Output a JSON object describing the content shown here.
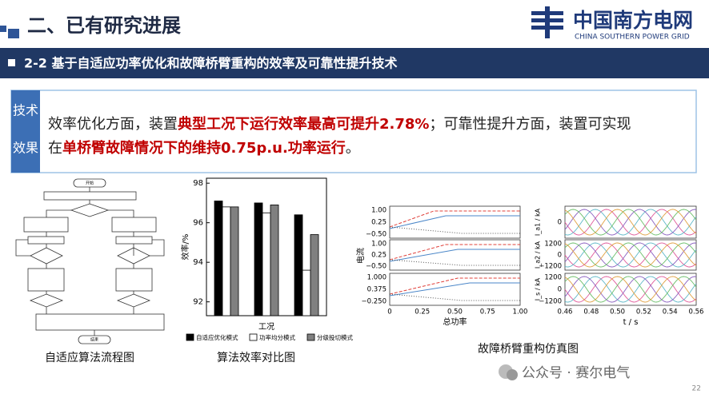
{
  "header": {
    "title": "二、已有研究进展"
  },
  "logo": {
    "name": "中国南方电网",
    "subtitle": "CHINA SOUTHERN POWER GRID"
  },
  "section": {
    "title": "2-2 基于自适应功率优化和故障桥臂重构的效率及可靠性提升技术"
  },
  "summary": {
    "label": [
      "技术",
      "效果"
    ],
    "line1": [
      "效率优化方面，装置",
      "典型工况下运行效率最高可提升2.78%",
      "；可靠性提升方面，装置可实现"
    ],
    "line2": [
      "在",
      "单桥臂故障情况下的维持0.75p.u.功率运行",
      "。"
    ]
  },
  "flowchart": {
    "start": "开始",
    "end": "结束",
    "caption": "自适应算法流程图"
  },
  "bar_figure": {
    "caption": "算法效率对比图"
  },
  "chart_data": {
    "type": "bar",
    "categories": [
      null,
      null,
      null
    ],
    "xlabel": "工况",
    "ylabel": "效率/%",
    "ylim": [
      91.3,
      98.25
    ],
    "yticks": [
      92,
      94,
      96,
      98
    ],
    "grid": false,
    "legend": "bottom",
    "series": [
      {
        "name": "自适应优化模式",
        "color": "#000000",
        "values": [
          97.1,
          97.0,
          96.4
        ]
      },
      {
        "name": "功率均分模式",
        "color": "#ffffff",
        "values": [
          96.8,
          96.5,
          93.6
        ]
      },
      {
        "name": "分级投切模式",
        "color": "#808080",
        "values": [
          96.8,
          96.9,
          95.4
        ]
      }
    ]
  },
  "simulation": {
    "caption": "故障桥臂重构仿真图",
    "left": {
      "ylabel": "电流",
      "xlabel": "总功率",
      "panels": [
        [
          "1.00",
          "0.25",
          "−0.50"
        ],
        [
          "1.00",
          "0.25",
          "−0.50"
        ],
        [
          "1.000",
          "0.375",
          "−0.250"
        ]
      ],
      "xticks": [
        "0",
        "0.25",
        "0.50",
        "0.75",
        "1.00"
      ]
    },
    "right": {
      "xlabel": "t / s",
      "ylabels": [
        "I_a1 / kA",
        "I_a2 / kA",
        "I_s / kA"
      ],
      "panels": [
        [
          "0"
        ],
        [
          "1200",
          "0",
          "−1200"
        ],
        [
          "1200",
          "0",
          "−1200"
        ]
      ],
      "xticks": [
        "0.46",
        "0.48",
        "0.50",
        "0.52",
        "0.54",
        "0.56"
      ]
    }
  },
  "footer": {
    "watermark": "公众号 · 赛尔电气",
    "page": "22"
  }
}
